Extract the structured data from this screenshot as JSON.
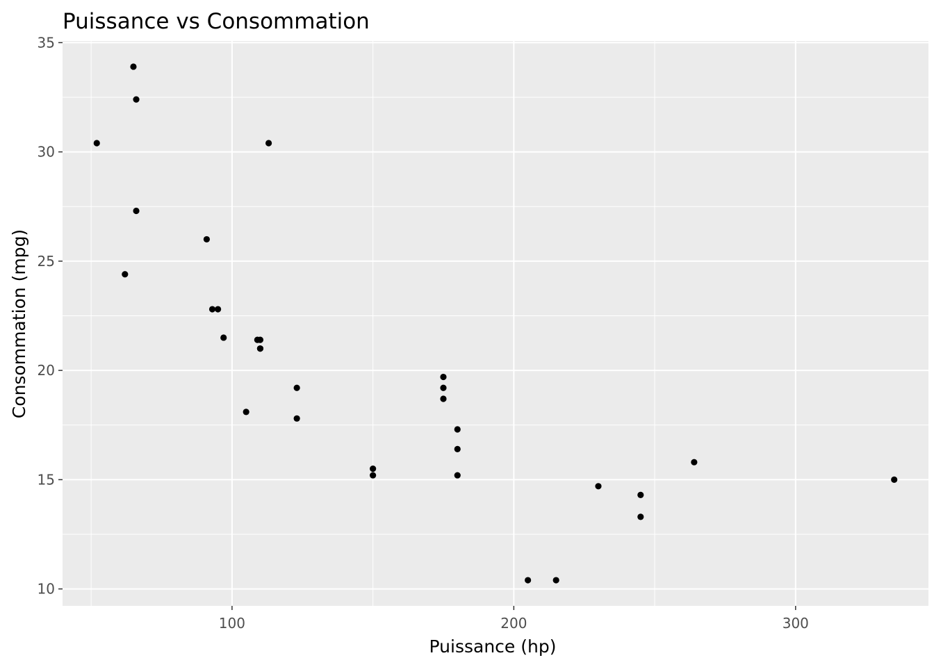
{
  "chart_data": {
    "type": "scatter",
    "title": "Puissance vs Consommation",
    "xlabel": "Puissance (hp)",
    "ylabel": "Consommation (mpg)",
    "xlim": [
      39.85,
      347.15
    ],
    "ylim": [
      9.225,
      35.075
    ],
    "xticks": [
      100,
      200,
      300
    ],
    "yticks": [
      10,
      15,
      20,
      25,
      30,
      35
    ],
    "xminor": [
      50,
      150,
      250
    ],
    "yminor": [
      12.5,
      17.5,
      22.5,
      27.5,
      32.5
    ],
    "grid": true,
    "theme": "gray panel, white gridlines",
    "point_color": "#000000",
    "panel_color": "#ebebeb",
    "points": [
      {
        "x": 110,
        "y": 21.0
      },
      {
        "x": 110,
        "y": 21.0
      },
      {
        "x": 93,
        "y": 22.8
      },
      {
        "x": 110,
        "y": 21.4
      },
      {
        "x": 175,
        "y": 18.7
      },
      {
        "x": 105,
        "y": 18.1
      },
      {
        "x": 245,
        "y": 14.3
      },
      {
        "x": 62,
        "y": 24.4
      },
      {
        "x": 95,
        "y": 22.8
      },
      {
        "x": 123,
        "y": 19.2
      },
      {
        "x": 123,
        "y": 17.8
      },
      {
        "x": 180,
        "y": 16.4
      },
      {
        "x": 180,
        "y": 17.3
      },
      {
        "x": 180,
        "y": 15.2
      },
      {
        "x": 205,
        "y": 10.4
      },
      {
        "x": 215,
        "y": 10.4
      },
      {
        "x": 230,
        "y": 14.7
      },
      {
        "x": 66,
        "y": 32.4
      },
      {
        "x": 52,
        "y": 30.4
      },
      {
        "x": 65,
        "y": 33.9
      },
      {
        "x": 97,
        "y": 21.5
      },
      {
        "x": 150,
        "y": 15.5
      },
      {
        "x": 150,
        "y": 15.2
      },
      {
        "x": 245,
        "y": 13.3
      },
      {
        "x": 175,
        "y": 19.2
      },
      {
        "x": 66,
        "y": 27.3
      },
      {
        "x": 91,
        "y": 26.0
      },
      {
        "x": 113,
        "y": 30.4
      },
      {
        "x": 264,
        "y": 15.8
      },
      {
        "x": 175,
        "y": 19.7
      },
      {
        "x": 335,
        "y": 15.0
      },
      {
        "x": 109,
        "y": 21.4
      }
    ]
  }
}
